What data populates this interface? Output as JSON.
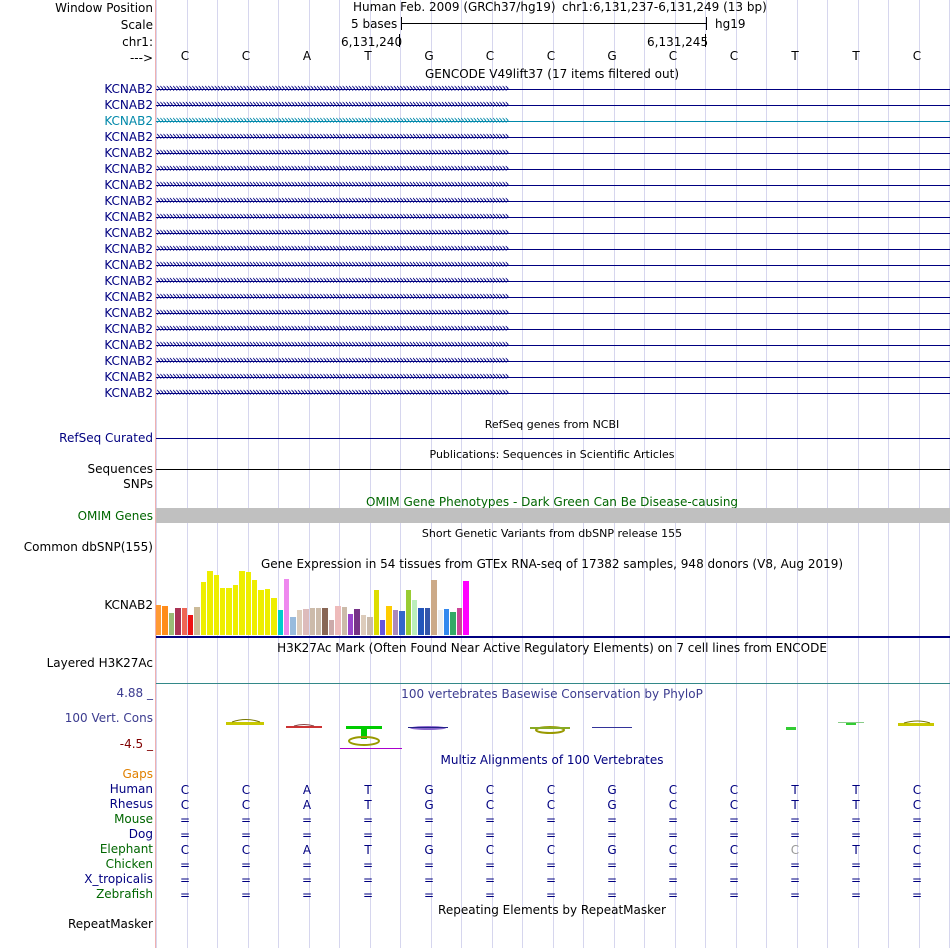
{
  "header": {
    "window_position_label": "Window Position",
    "scale_label": "Scale",
    "chrom_label": "chr1:",
    "arrow_label": "--->",
    "assembly": "Human Feb. 2009 (GRCh37/hg19)",
    "position": "chr1:6,131,237-6,131,249 (13 bp)",
    "scale_text": "5 bases",
    "db": "hg19",
    "tick_left": "6,131,240",
    "tick_right": "6,131,245"
  },
  "sequence": [
    "C",
    "C",
    "A",
    "T",
    "G",
    "C",
    "C",
    "G",
    "C",
    "C",
    "T",
    "T",
    "C"
  ],
  "colors": {
    "nav_label": "#000080",
    "selected_label": "#0088aa",
    "omim": "#006600",
    "gaps": "#e08000",
    "phylop": "#3b3b8f",
    "multiz": "#000080"
  },
  "tracks": {
    "gencode_title": "GENCODE V49lift37 (17 items filtered out)",
    "gencode_items": [
      "KCNAB2",
      "KCNAB2",
      "KCNAB2",
      "KCNAB2",
      "KCNAB2",
      "KCNAB2",
      "KCNAB2",
      "KCNAB2",
      "KCNAB2",
      "KCNAB2",
      "KCNAB2",
      "KCNAB2",
      "KCNAB2",
      "KCNAB2",
      "KCNAB2",
      "KCNAB2",
      "KCNAB2",
      "KCNAB2",
      "KCNAB2",
      "KCNAB2"
    ],
    "refseq_title": "RefSeq genes from NCBI",
    "refseq_label": "RefSeq Curated",
    "pubs_title": "Publications: Sequences in Scientific Articles",
    "pubs_label": "Sequences",
    "snps_label": "SNPs",
    "omim_title": "OMIM Gene Phenotypes - Dark Green Can Be Disease-causing",
    "omim_label": "OMIM Genes",
    "dbsnp_title": "Short Genetic Variants from dbSNP release 155",
    "dbsnp_label": "Common dbSNP(155)",
    "gtex_title": "Gene Expression in 54 tissues from GTEx RNA-seq of 17382 samples, 948 donors (V8, Aug 2019)",
    "gtex_label": "KCNAB2",
    "h3k27_title": "H3K27Ac Mark (Often Found Near Active Regulatory Elements) on 7 cell lines from ENCODE",
    "h3k27_label": "Layered H3K27Ac",
    "phylop_title": "100 vertebrates Basewise Conservation by PhyloP",
    "phylop_label": "100 Vert. Cons",
    "phylop_max": "4.88 _",
    "phylop_min": "-4.5 _",
    "multiz_title": "Multiz Alignments of 100 Vertebrates",
    "gaps_label": "Gaps",
    "repeat_title": "Repeating Elements by RepeatMasker",
    "repeat_label": "RepeatMasker"
  },
  "gtex": {
    "colors": [
      "#ff9933",
      "#ff8c1a",
      "#99bb77",
      "#aa3355",
      "#ee6655",
      "#ee1111",
      "#ccbb99",
      "#eeee00",
      "#eeee00",
      "#eeee00",
      "#eeee00",
      "#eeee00",
      "#eeee00",
      "#eeee00",
      "#eeee00",
      "#eeee00",
      "#eeee00",
      "#eeee00",
      "#eeee00",
      "#00cccc",
      "#ee88ee",
      "#99bbdd",
      "#ddccbb",
      "#ddbbbb",
      "#ccbbaa",
      "#ccbbaa",
      "#886655",
      "#ccaaaa",
      "#eebbbb",
      "#ccbbaa",
      "#9944cc",
      "#773388",
      "#ddccbb",
      "#cbbbab",
      "#dddd00",
      "#6655dd",
      "#ffcc00",
      "#aa88bb",
      "#3366cc",
      "#99cc33",
      "#bbeebb",
      "#2255bb",
      "#3355aa",
      "#ccaa88",
      "#eeeeee",
      "#3388ee",
      "#33aa66",
      "#cc4499",
      "#ff00ff"
    ],
    "values": [
      30,
      29,
      22,
      27,
      27,
      20,
      28,
      53,
      64,
      60,
      47,
      47,
      50,
      64,
      63,
      55,
      45,
      46,
      37,
      25,
      56,
      18,
      25,
      26,
      27,
      27,
      27,
      15,
      29,
      28,
      21,
      26,
      20,
      18,
      45,
      15,
      29,
      25,
      24,
      45,
      35,
      27,
      27,
      55,
      25,
      26,
      23,
      27,
      54
    ]
  },
  "alignment": [
    {
      "species": "Human",
      "color": "#000080",
      "bases": [
        "C",
        "C",
        "A",
        "T",
        "G",
        "C",
        "C",
        "G",
        "C",
        "C",
        "T",
        "T",
        "C"
      ]
    },
    {
      "species": "Rhesus",
      "color": "#000080",
      "bases": [
        "C",
        "C",
        "A",
        "T",
        "G",
        "C",
        "C",
        "G",
        "C",
        "C",
        "T",
        "T",
        "C"
      ]
    },
    {
      "species": "Mouse",
      "color": "#006600",
      "bases": [
        "=",
        "=",
        "=",
        "=",
        "=",
        "=",
        "=",
        "=",
        "=",
        "=",
        "=",
        "=",
        "="
      ]
    },
    {
      "species": "Dog",
      "color": "#000080",
      "bases": [
        "=",
        "=",
        "=",
        "=",
        "=",
        "=",
        "=",
        "=",
        "=",
        "=",
        "=",
        "=",
        "="
      ]
    },
    {
      "species": "Elephant",
      "color": "#006600",
      "bases": [
        "C",
        "C",
        "A",
        "T",
        "G",
        "C",
        "C",
        "G",
        "C",
        "C",
        "C",
        "T",
        "C"
      ]
    },
    {
      "species": "Chicken",
      "color": "#006600",
      "bases": [
        "=",
        "=",
        "=",
        "=",
        "=",
        "=",
        "=",
        "=",
        "=",
        "=",
        "=",
        "=",
        "="
      ]
    },
    {
      "species": "X_tropicalis",
      "color": "#000080",
      "bases": [
        "=",
        "=",
        "=",
        "=",
        "=",
        "=",
        "=",
        "=",
        "=",
        "=",
        "=",
        "=",
        "="
      ]
    },
    {
      "species": "Zebrafish",
      "color": "#006600",
      "bases": [
        "=",
        "=",
        "=",
        "=",
        "=",
        "=",
        "=",
        "=",
        "=",
        "=",
        "=",
        "=",
        "="
      ]
    }
  ]
}
